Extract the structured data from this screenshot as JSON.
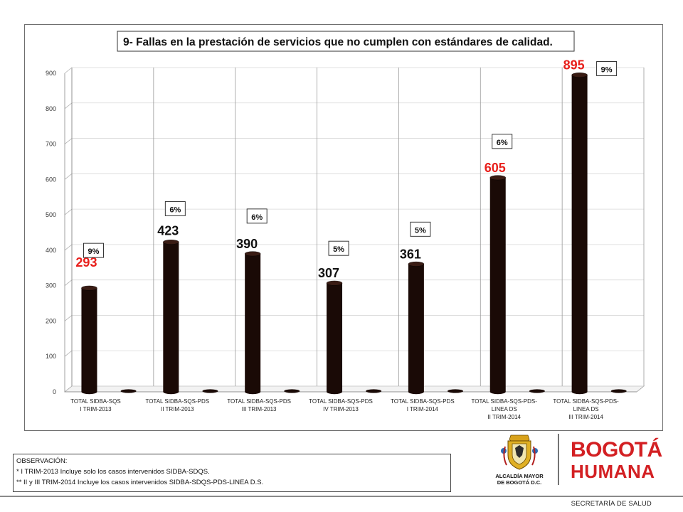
{
  "chart_data": {
    "type": "bar",
    "title": "9- Fallas en la prestación de servicios que no cumplen con estándares de calidad.",
    "categories": [
      [
        "TOTAL SIDBA-SQS",
        "I TRIM-2013"
      ],
      [
        "TOTAL SIDBA-SQS-PDS",
        "II TRIM-2013"
      ],
      [
        "TOTAL SIDBA-SQS-PDS",
        "III TRIM-2013"
      ],
      [
        "TOTAL SIDBA-SQS-PDS",
        "IV TRIM-2013"
      ],
      [
        "TOTAL SIDBA-SQS-PDS",
        "I TRIM-2014"
      ],
      [
        "TOTAL SIDBA-SQS-PDS-",
        "LINEA DS",
        "II TRIM-2014"
      ],
      [
        "TOTAL SIDBA-SQS-PDS-",
        "LINEA DS",
        "III TRIM-2014"
      ]
    ],
    "values": [
      293,
      423,
      390,
      307,
      361,
      605,
      895
    ],
    "value_labels": [
      "293",
      "423",
      "390",
      "307",
      "361",
      "605",
      "895"
    ],
    "value_label_colors": [
      "#e8201c",
      "#111111",
      "#111111",
      "#111111",
      "#111111",
      "#e8201c",
      "#e8201c"
    ],
    "percent_labels": [
      "9%",
      "6%",
      "6%",
      "5%",
      "5%",
      "6%",
      "9%"
    ],
    "ylim": [
      0,
      900
    ],
    "yticks": [
      "0",
      "100",
      "200",
      "300",
      "400",
      "500",
      "600",
      "700",
      "800",
      "900"
    ],
    "grid": true,
    "bar_color": "#1a0a06",
    "xlabel": "",
    "ylabel": ""
  },
  "observation": {
    "heading": "OBSERVACIÓN:",
    "line1": "* I TRIM-2013 Incluye solo los casos intervenidos SIDBA-SDQS.",
    "line2": "** II y III TRIM-2014 Incluye los casos intervenidos SIDBA-SDQS-PDS-LINEA  D.S."
  },
  "logos": {
    "alcaldia_line1": "ALCALDÍA MAYOR",
    "alcaldia_line2": "DE BOGOTÁ D.C.",
    "bogota": "BOGOTÁ",
    "humana": "HUMANA"
  },
  "footer": "SECRETARÍA DE SALUD"
}
